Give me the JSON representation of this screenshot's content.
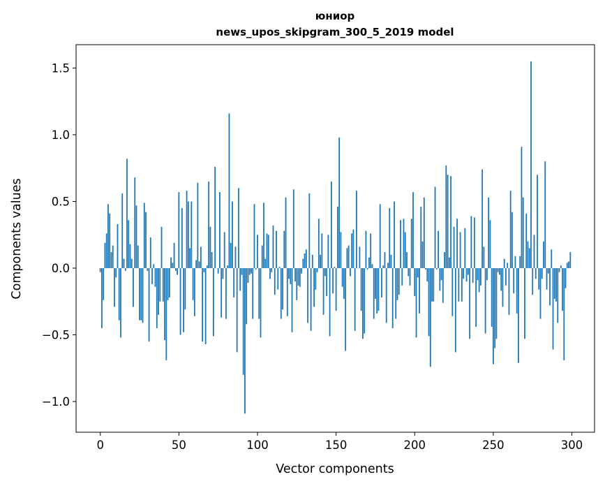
{
  "chart_data": {
    "type": "bar",
    "title_lines": [
      "юниор",
      "news_upos_skipgram_300_5_2019 model"
    ],
    "xlabel": "Vector components",
    "ylabel": "Components values",
    "xlim": [
      -15.4,
      314.4
    ],
    "ylim": [
      -1.23,
      1.675
    ],
    "xticks": [
      0,
      50,
      100,
      150,
      200,
      250,
      300
    ],
    "xtick_labels": [
      "0",
      "50",
      "100",
      "150",
      "200",
      "250",
      "300"
    ],
    "yticks": [
      -1.0,
      -0.5,
      0.0,
      0.5,
      1.0,
      1.5
    ],
    "ytick_labels": [
      "−1.0",
      "−0.5",
      "0.0",
      "0.5",
      "1.0",
      "1.5"
    ],
    "grid": false,
    "bar_color": "#1f77b4",
    "bar_width": 0.8,
    "values": [
      -0.03,
      -0.45,
      -0.24,
      0.19,
      0.26,
      0.48,
      0.41,
      0.12,
      0.17,
      -0.29,
      -0.07,
      0.33,
      -0.39,
      -0.52,
      0.56,
      0.07,
      -0.02,
      0.82,
      0.36,
      0.18,
      0.07,
      -0.29,
      0.68,
      0.47,
      0.17,
      -0.39,
      -0.39,
      -0.41,
      0.49,
      0.42,
      -0.02,
      -0.55,
      0.23,
      -0.12,
      0.03,
      -0.14,
      -0.45,
      -0.35,
      -0.25,
      0.31,
      -0.25,
      -0.54,
      -0.69,
      -0.24,
      -0.22,
      0.08,
      0.04,
      0.19,
      -0.02,
      -0.05,
      0.57,
      -0.5,
      0.45,
      -0.48,
      -0.31,
      0.58,
      0.5,
      0.15,
      0.5,
      -0.24,
      -0.36,
      0.06,
      0.64,
      0.05,
      0.16,
      -0.55,
      -0.03,
      -0.57,
      0.02,
      0.65,
      0.31,
      0.12,
      -0.51,
      0.76,
      0.0,
      -0.04,
      0.57,
      -0.37,
      -0.08,
      0.27,
      -0.38,
      0.02,
      1.16,
      0.19,
      0.5,
      -0.22,
      0.16,
      -0.63,
      0.6,
      -0.17,
      -0.05,
      -0.8,
      -1.09,
      -0.42,
      -0.11,
      -0.05,
      -0.04,
      -0.38,
      0.48,
      -0.01,
      0.25,
      -0.38,
      -0.52,
      0.17,
      0.49,
      0.07,
      0.26,
      0.25,
      -0.08,
      -0.03,
      0.32,
      -0.2,
      0.28,
      -0.16,
      0.01,
      -0.38,
      -0.31,
      0.28,
      0.53,
      -0.36,
      -0.08,
      -0.12,
      -0.48,
      0.59,
      -0.1,
      -0.24,
      -0.13,
      -0.14,
      -0.04,
      0.07,
      0.11,
      0.14,
      -0.41,
      0.56,
      -0.47,
      0.1,
      -0.29,
      -0.16,
      -0.03,
      0.37,
      0.1,
      0.26,
      -0.35,
      -0.06,
      -0.21,
      0.25,
      -0.51,
      0.65,
      -0.19,
      0.01,
      -0.32,
      0.46,
      0.98,
      0.27,
      -0.14,
      -0.23,
      -0.62,
      0.15,
      0.17,
      -0.06,
      0.26,
      0.29,
      -0.47,
      0.58,
      0.0,
      0.16,
      -0.32,
      -0.53,
      -0.49,
      0.28,
      -0.01,
      0.08,
      0.26,
      0.03,
      -0.38,
      -0.23,
      -0.34,
      -0.32,
      0.48,
      -0.22,
      0.02,
      0.12,
      -0.41,
      0.04,
      0.45,
      0.1,
      -0.45,
      0.5,
      -0.38,
      -0.24,
      -0.2,
      0.36,
      -0.13,
      0.37,
      0.27,
      0.12,
      -0.06,
      -0.13,
      0.37,
      0.57,
      -0.21,
      -0.52,
      -0.07,
      -0.34,
      0.46,
      0.2,
      0.53,
      -0.01,
      -0.1,
      -0.51,
      -0.74,
      -0.25,
      -0.25,
      0.61,
      -0.01,
      0.28,
      -0.17,
      -0.09,
      -0.26,
      0.12,
      0.77,
      0.7,
      0.08,
      0.69,
      -0.36,
      0.31,
      -0.63,
      0.37,
      -0.25,
      0.27,
      -0.25,
      -0.08,
      0.3,
      -0.1,
      -0.05,
      -0.53,
      0.39,
      -0.11,
      0.38,
      -0.44,
      -0.09,
      -0.18,
      -0.13,
      0.74,
      0.16,
      -0.49,
      -0.09,
      0.53,
      0.36,
      -0.44,
      -0.72,
      -0.6,
      -0.53,
      -0.03,
      -0.05,
      -0.17,
      -0.29,
      0.07,
      -0.13,
      0.04,
      -0.35,
      0.58,
      0.42,
      -0.19,
      0.09,
      -0.34,
      -0.71,
      0.09,
      0.91,
      0.53,
      -0.53,
      0.41,
      0.2,
      0.15,
      1.55,
      -0.2,
      0.25,
      -0.08,
      0.7,
      -0.16,
      -0.38,
      -0.08,
      0.2,
      0.8,
      -0.16,
      -0.04,
      -0.28,
      0.14,
      -0.61,
      -0.23,
      -0.25,
      -0.41,
      -0.03,
      0.02,
      -0.32,
      -0.69,
      -0.15,
      0.04,
      0.05,
      0.12
    ]
  }
}
